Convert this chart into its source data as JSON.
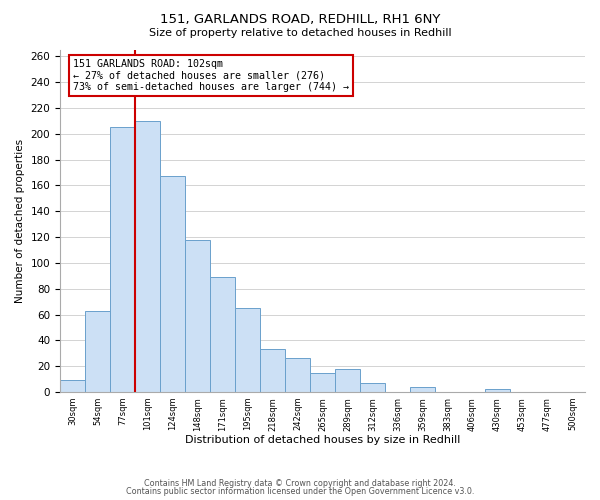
{
  "title": "151, GARLANDS ROAD, REDHILL, RH1 6NY",
  "subtitle": "Size of property relative to detached houses in Redhill",
  "xlabel": "Distribution of detached houses by size in Redhill",
  "ylabel": "Number of detached properties",
  "bin_labels": [
    "30sqm",
    "54sqm",
    "77sqm",
    "101sqm",
    "124sqm",
    "148sqm",
    "171sqm",
    "195sqm",
    "218sqm",
    "242sqm",
    "265sqm",
    "289sqm",
    "312sqm",
    "336sqm",
    "359sqm",
    "383sqm",
    "406sqm",
    "430sqm",
    "453sqm",
    "477sqm",
    "500sqm"
  ],
  "bar_values": [
    9,
    63,
    205,
    210,
    167,
    118,
    89,
    65,
    33,
    26,
    15,
    18,
    7,
    0,
    4,
    0,
    0,
    2,
    0,
    0,
    0
  ],
  "bar_color": "#cce0f5",
  "bar_edge_color": "#6aa0cc",
  "property_line_x": 3,
  "property_line_color": "#cc0000",
  "annotation_text": "151 GARLANDS ROAD: 102sqm\n← 27% of detached houses are smaller (276)\n73% of semi-detached houses are larger (744) →",
  "annotation_box_color": "#ffffff",
  "annotation_box_edge_color": "#cc0000",
  "ylim": [
    0,
    265
  ],
  "yticks": [
    0,
    20,
    40,
    60,
    80,
    100,
    120,
    140,
    160,
    180,
    200,
    220,
    240,
    260
  ],
  "footer_line1": "Contains HM Land Registry data © Crown copyright and database right 2024.",
  "footer_line2": "Contains public sector information licensed under the Open Government Licence v3.0.",
  "background_color": "#ffffff",
  "grid_color": "#cccccc"
}
